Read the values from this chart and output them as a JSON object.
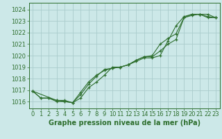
{
  "title": "Graphe pression niveau de la mer (hPa)",
  "bg_color": "#cce8e8",
  "grid_color": "#aacccc",
  "line_color": "#2d6e2d",
  "marker_color": "#2d6e2d",
  "xlim": [
    -0.5,
    23.5
  ],
  "ylim": [
    1015.4,
    1024.6
  ],
  "yticks": [
    1016,
    1017,
    1018,
    1019,
    1020,
    1021,
    1022,
    1023,
    1024
  ],
  "xticks": [
    0,
    1,
    2,
    3,
    4,
    5,
    6,
    7,
    8,
    9,
    10,
    11,
    12,
    13,
    14,
    15,
    16,
    17,
    18,
    19,
    20,
    21,
    22,
    23
  ],
  "line1_x": [
    0,
    1,
    2,
    3,
    4,
    5,
    6,
    7,
    8,
    9,
    10,
    11,
    12,
    13,
    14,
    15,
    16,
    17,
    18,
    19,
    20,
    21,
    22,
    23
  ],
  "line1_y": [
    1016.9,
    1016.3,
    1016.3,
    1016.1,
    1016.1,
    1015.9,
    1016.3,
    1017.2,
    1017.7,
    1018.3,
    1019.0,
    1019.0,
    1019.2,
    1019.5,
    1019.8,
    1019.8,
    1020.0,
    1021.3,
    1022.6,
    1023.4,
    1023.6,
    1023.6,
    1023.6,
    1023.3
  ],
  "line2_x": [
    0,
    1,
    2,
    3,
    4,
    5,
    6,
    7,
    8,
    9,
    10,
    11,
    12,
    13,
    14,
    15,
    16,
    17,
    18,
    19,
    20,
    21,
    22,
    23
  ],
  "line2_y": [
    1016.9,
    1016.3,
    1016.3,
    1016.0,
    1016.0,
    1015.9,
    1016.6,
    1017.5,
    1018.2,
    1018.8,
    1018.9,
    1019.0,
    1019.2,
    1019.6,
    1019.9,
    1020.0,
    1021.0,
    1021.5,
    1021.9,
    1023.3,
    1023.5,
    1023.6,
    1023.3,
    1023.3
  ],
  "line3_x": [
    0,
    3,
    4,
    5,
    6,
    7,
    8,
    9,
    10,
    11,
    12,
    13,
    14,
    15,
    16,
    17,
    18,
    19,
    20,
    21,
    22,
    23
  ],
  "line3_y": [
    1016.9,
    1016.1,
    1016.0,
    1015.9,
    1016.8,
    1017.7,
    1018.3,
    1018.7,
    1018.9,
    1019.0,
    1019.2,
    1019.6,
    1019.9,
    1019.9,
    1020.4,
    1021.0,
    1021.4,
    1023.3,
    1023.6,
    1023.6,
    1023.4,
    1023.3
  ],
  "tick_fontsize": 6,
  "xlabel_fontsize": 7
}
